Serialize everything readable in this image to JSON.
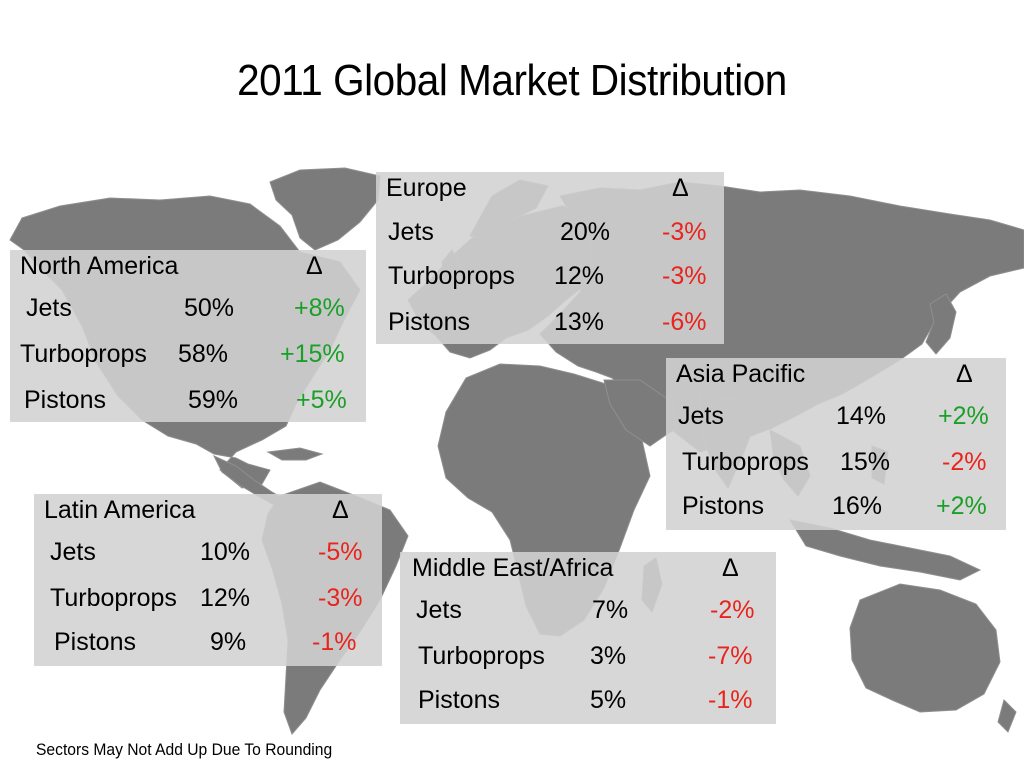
{
  "title": "2011 Global Market Distribution",
  "delta_symbol": "Δ",
  "colors": {
    "positive": "#1aa028",
    "negative": "#e8241c",
    "land": "#7b7b7b",
    "box": "#d2d2d2"
  },
  "regions": {
    "north_america": {
      "name": "North America",
      "rows": [
        {
          "label": "Jets",
          "share": "50%",
          "change": "+8%"
        },
        {
          "label": "Turboprops",
          "share": "58%",
          "change": "+15%"
        },
        {
          "label": "Pistons",
          "share": "59%",
          "change": "+5%"
        }
      ]
    },
    "europe": {
      "name": "Europe",
      "rows": [
        {
          "label": "Jets",
          "share": "20%",
          "change": "-3%"
        },
        {
          "label": "Turboprops",
          "share": "12%",
          "change": "-3%"
        },
        {
          "label": "Pistons",
          "share": "13%",
          "change": "-6%"
        }
      ]
    },
    "asia_pacific": {
      "name": "Asia Pacific",
      "rows": [
        {
          "label": "Jets",
          "share": "14%",
          "change": "+2%"
        },
        {
          "label": "Turboprops",
          "share": "15%",
          "change": "-2%"
        },
        {
          "label": "Pistons",
          "share": "16%",
          "change": "+2%"
        }
      ]
    },
    "latin_america": {
      "name": "Latin America",
      "rows": [
        {
          "label": "Jets",
          "share": "10%",
          "change": "-5%"
        },
        {
          "label": "Turboprops",
          "share": "12%",
          "change": "-3%"
        },
        {
          "label": "Pistons",
          "share": "9%",
          "change": "-1%"
        }
      ]
    },
    "middle_east_africa": {
      "name": "Middle East/Africa",
      "rows": [
        {
          "label": "Jets",
          "share": "7%",
          "change": "-2%"
        },
        {
          "label": "Turboprops",
          "share": "3%",
          "change": "-7%"
        },
        {
          "label": "Pistons",
          "share": "5%",
          "change": "-1%"
        }
      ]
    }
  },
  "footnote": "Sectors May Not Add Up Due To Rounding"
}
